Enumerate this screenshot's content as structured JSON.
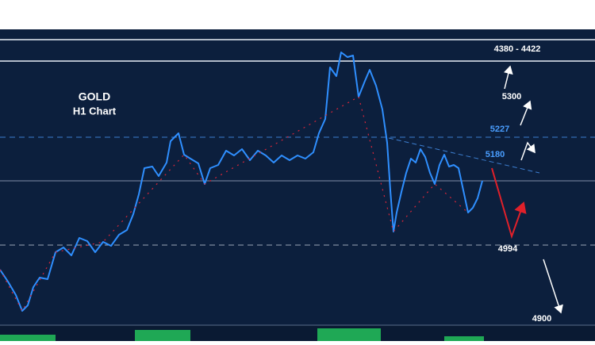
{
  "header": {
    "symbol": "GOLD",
    "timeframe": "H1 Chart"
  },
  "levels": [
    "4380 - 4422",
    5300,
    5227,
    5180,
    4994,
    4900
  ]
}
